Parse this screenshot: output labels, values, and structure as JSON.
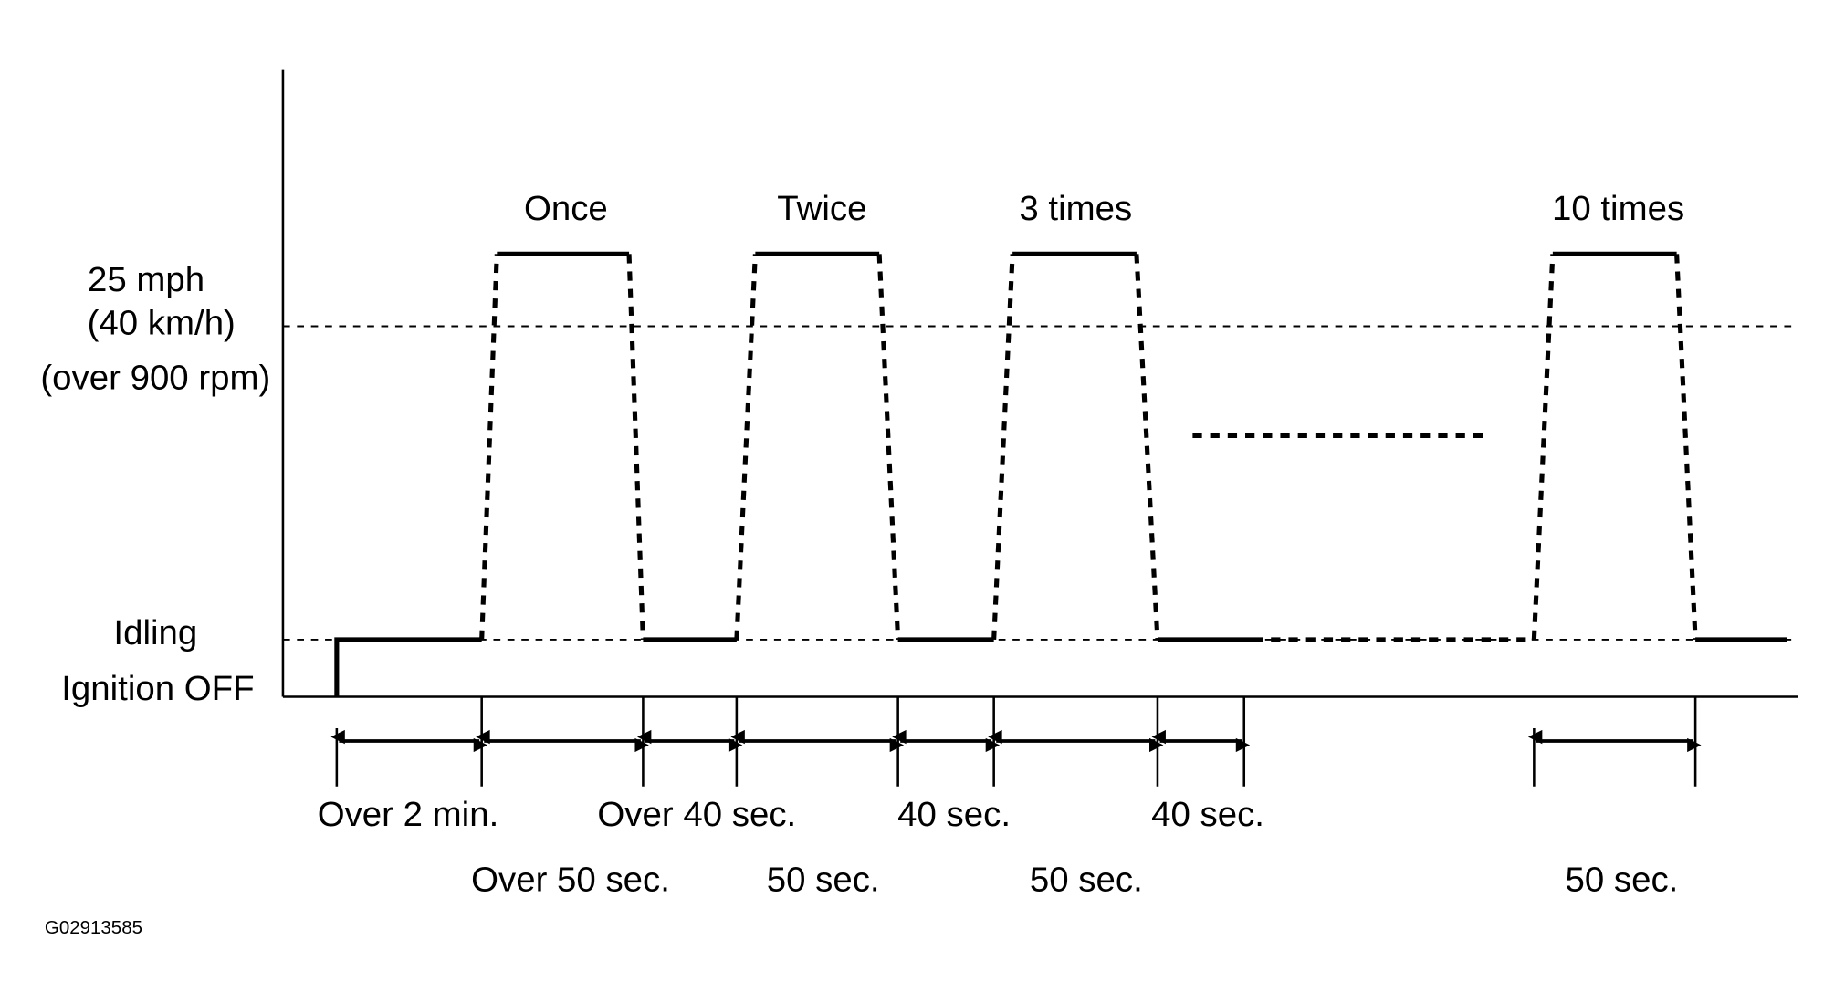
{
  "y_labels": [
    "25 mph",
    "(40 km/h)",
    "(over 900 rpm)",
    "Idling",
    "Ignition OFF"
  ],
  "cycle_labels": [
    "Once",
    "Twice",
    "3 times",
    "10 times"
  ],
  "durations_row1": [
    "Over 2 min.",
    "Over 40 sec.",
    "40 sec.",
    "40 sec."
  ],
  "durations_row2": [
    "Over 50 sec.",
    "50 sec.",
    "50 sec.",
    "50 sec."
  ],
  "figure_id": "G02913585"
}
